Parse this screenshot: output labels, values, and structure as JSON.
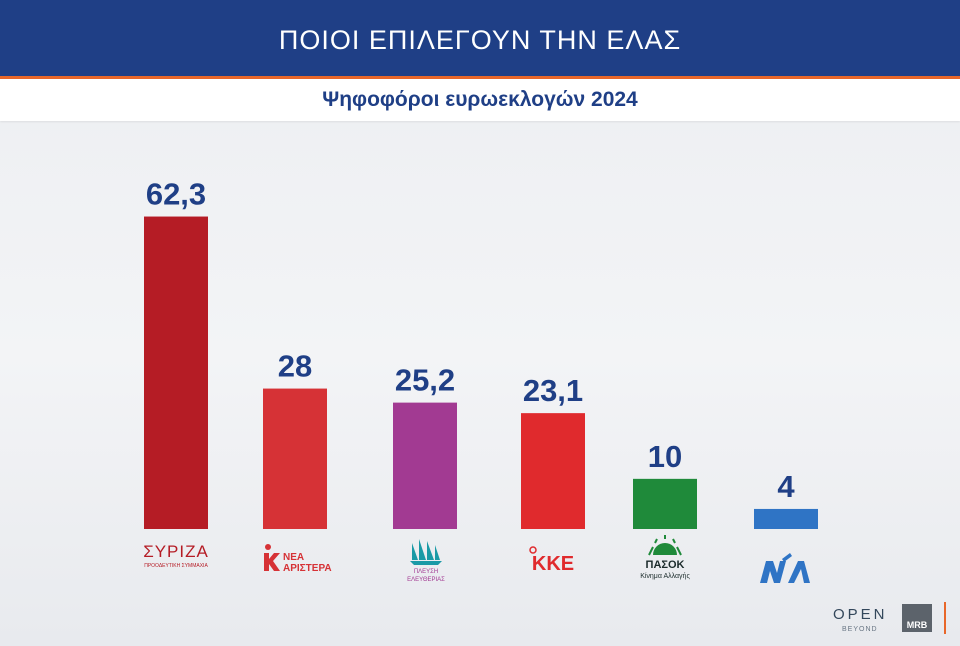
{
  "header": {
    "title": "ΠΟΙΟΙ ΕΠΙΛΕΓΟΥΝ ΤΗΝ ΕΛΑΣ",
    "subtitle": "Ψηφοφόροι ευρωεκλογών 2024"
  },
  "chart_data": {
    "type": "bar",
    "title": "ΠΟΙΟΙ ΕΠΙΛΕΓΟΥΝ ΤΗΝ ΕΛΑΣ",
    "subtitle": "Ψηφοφόροι ευρωεκλογών 2024",
    "categories": [
      "ΣΥΡΙΖΑ",
      "ΝΕΑ ΑΡΙΣΤΕΡΑ",
      "ΠΛΕΥΣΗ ΕΛΕΥΘΕΡΙΑΣ",
      "ΚΚΕ",
      "ΠΑΣΟΚ",
      "ΝΔ"
    ],
    "values": [
      62.3,
      28,
      25.2,
      23.1,
      10,
      4
    ],
    "value_labels": [
      "62,3",
      "28",
      "25,2",
      "23,1",
      "10",
      "4"
    ],
    "colors": [
      "#b51c25",
      "#d63236",
      "#a23a92",
      "#e02a2d",
      "#1f8a3a",
      "#2f74c5"
    ],
    "ylim": [
      0,
      65
    ],
    "grid": false,
    "legend": "none"
  },
  "party_logos": [
    {
      "icon": "syriza-logo",
      "text": "ΣΥΡΙΖΑ",
      "subtext": "ΠΡΟΟΔΕΥΤΙΚΗ ΣΥΜΜΑΧΙΑ",
      "color": "#b51c25"
    },
    {
      "icon": "nea-aristera-logo",
      "text": "ΝΕΑ",
      "text2": "ΑΡΙΣΤΕΡΑ",
      "color": "#d63236"
    },
    {
      "icon": "plefsi-logo",
      "text": "ΠΛΕΥΣΗ",
      "text2": "ΕΛΕΥΘΕΡΙΑΣ",
      "color": "#a23a92"
    },
    {
      "icon": "kke-logo",
      "text": "ΚΚΕ",
      "color": "#e02a2d"
    },
    {
      "icon": "pasok-logo",
      "text": "ΠΑΣΟΚ",
      "subtext": "Κίνημα Αλλαγής",
      "color": "#1f8a3a"
    },
    {
      "icon": "nd-logo",
      "text": "ΝΔ",
      "color": "#2f74c5"
    }
  ],
  "branding": {
    "open": "OPEN",
    "open_sub": "BEYOND",
    "mrb": "MRB"
  }
}
